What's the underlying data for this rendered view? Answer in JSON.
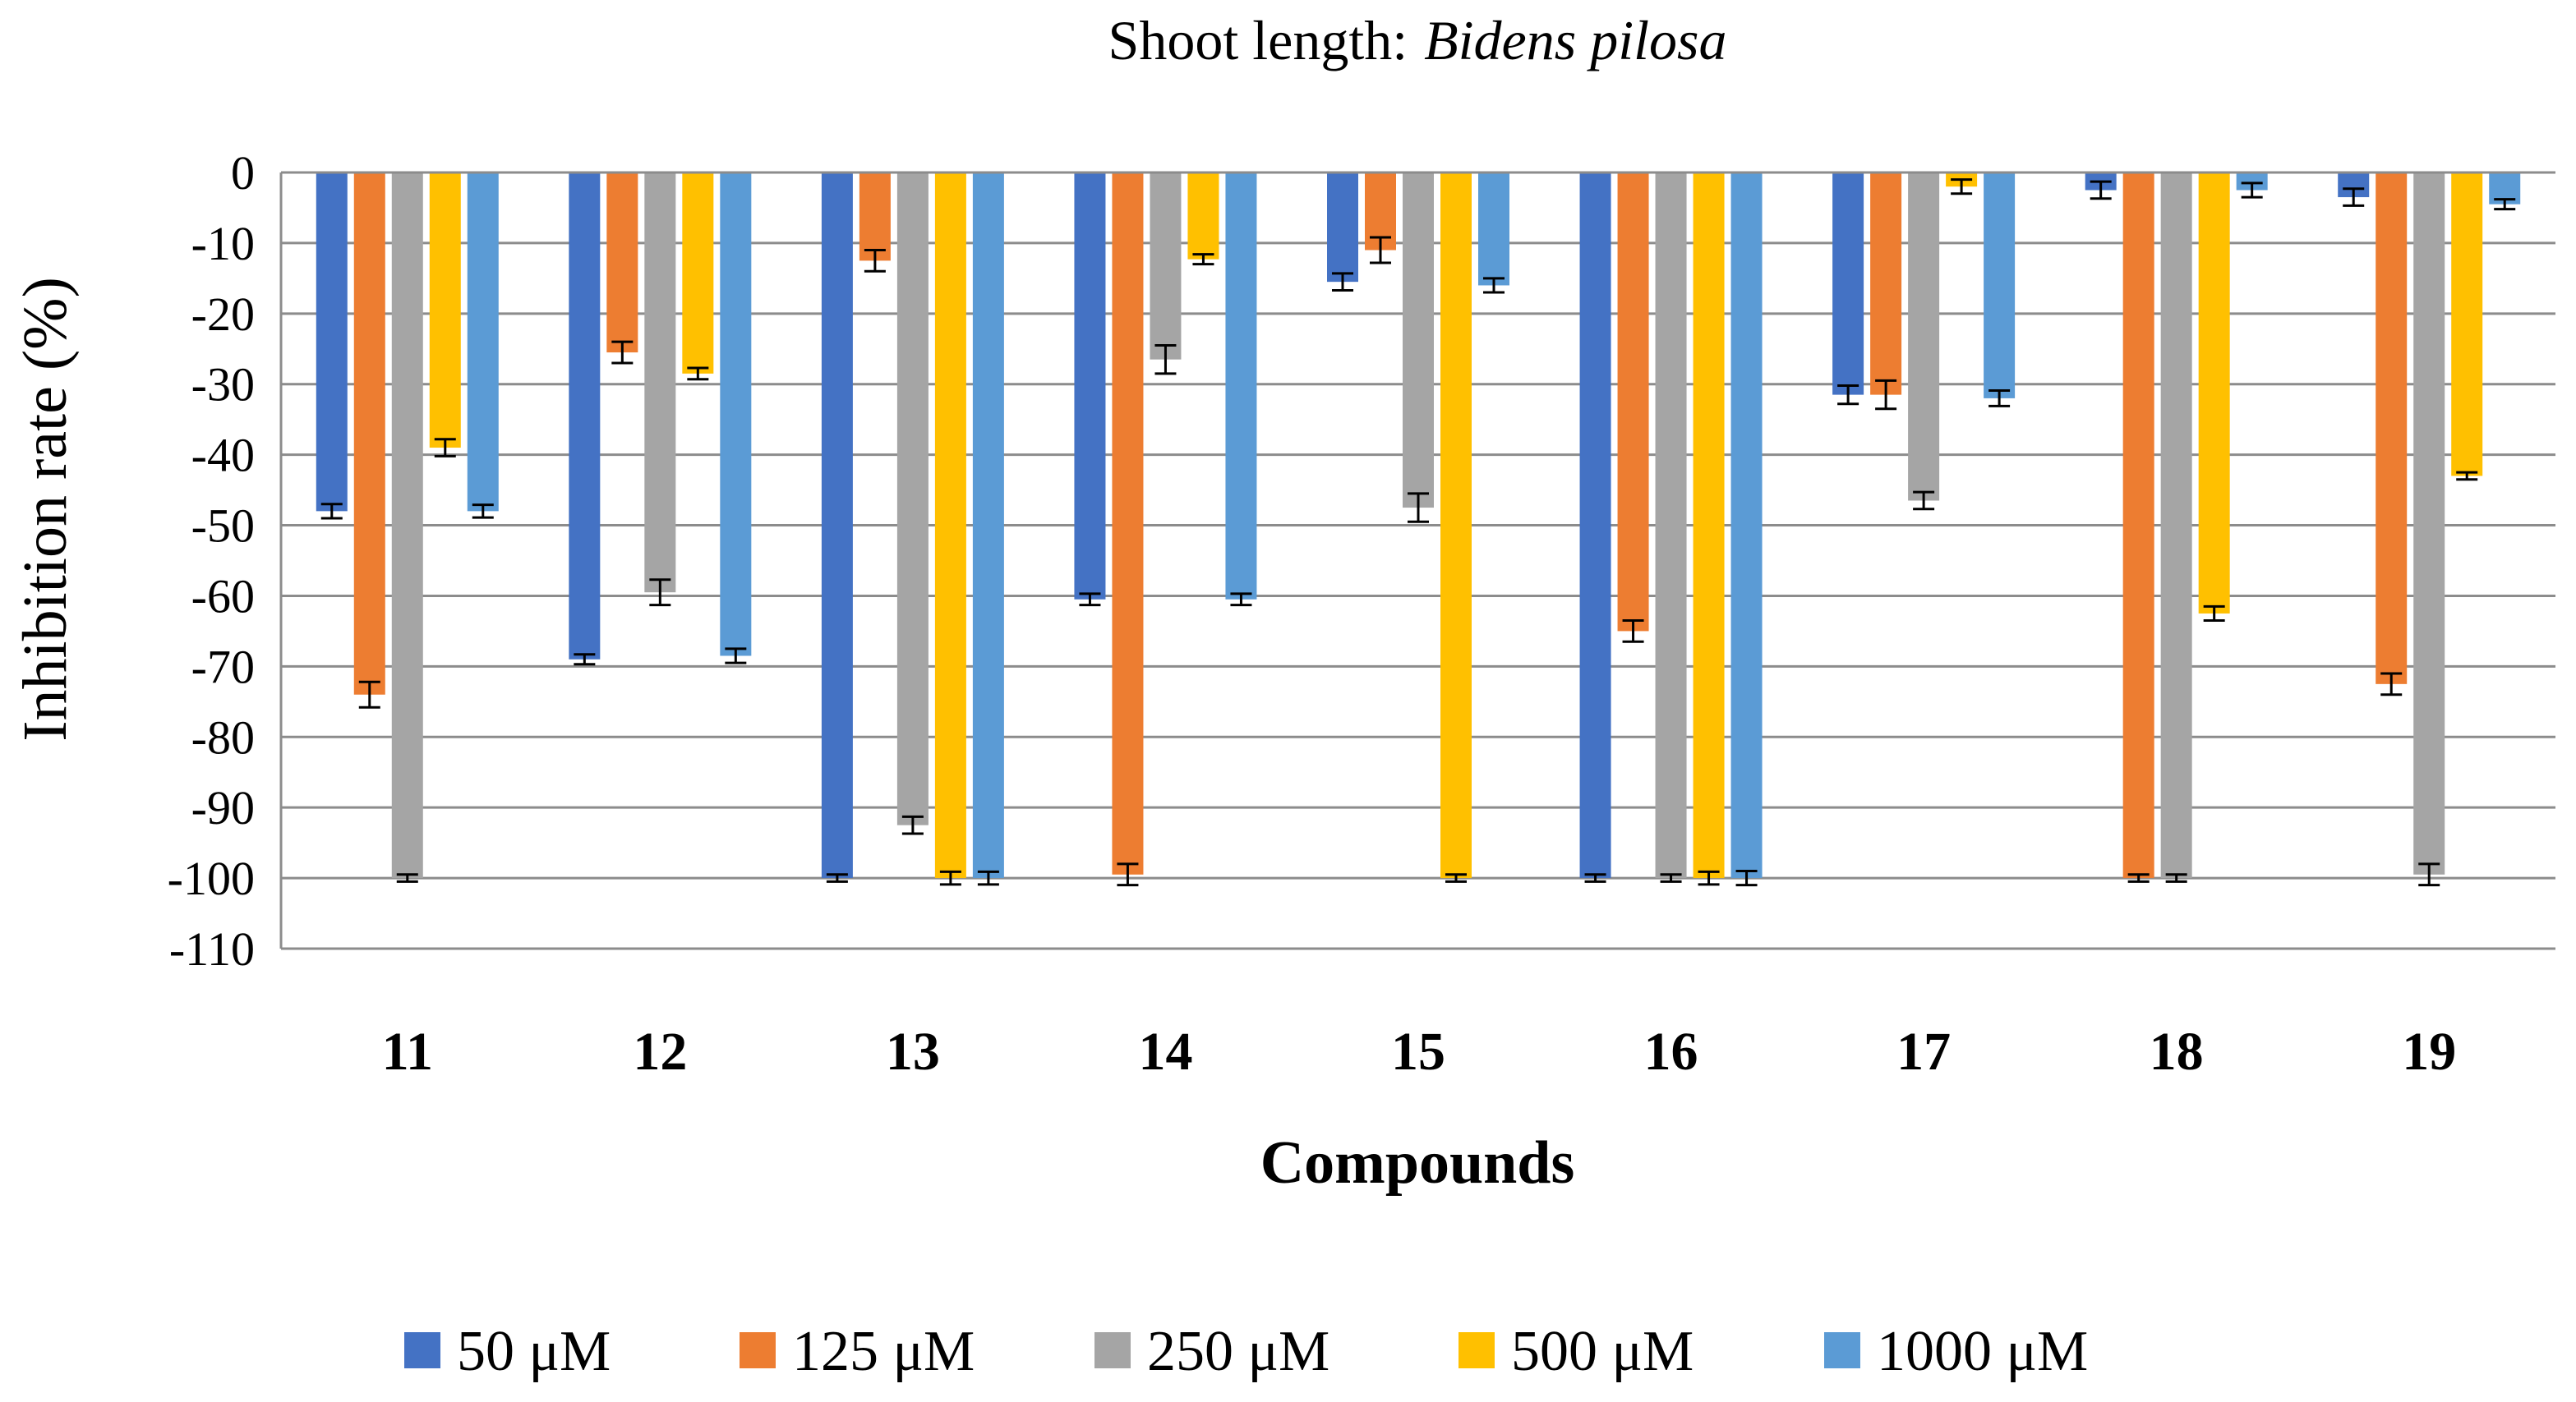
{
  "chart_data": {
    "type": "bar",
    "title": "Shoot length:",
    "title_species": "Bidens pilosa",
    "xlabel": "Compounds",
    "ylabel": "Inhibition rate (%)",
    "ylim": [
      -110,
      0
    ],
    "yticks": [
      0,
      -10,
      -20,
      -30,
      -40,
      -50,
      -60,
      -70,
      -80,
      -90,
      -100,
      -110
    ],
    "grid": true,
    "legend_position": "bottom",
    "categories": [
      "11",
      "12",
      "13",
      "14",
      "15",
      "16",
      "17",
      "18",
      "19"
    ],
    "series": [
      {
        "name": "50 μM",
        "color": "#4472C4",
        "values": [
          -48,
          -69,
          -100,
          -60.5,
          -15.5,
          -100,
          -31.5,
          -2.5,
          -3.5
        ],
        "errors": [
          1,
          0.7,
          0.5,
          0.8,
          1.2,
          0.5,
          1.3,
          1.2,
          1.2
        ]
      },
      {
        "name": "125 μM",
        "color": "#ED7D31",
        "values": [
          -74,
          -25.5,
          -12.5,
          -99.5,
          -11,
          -65,
          -31.5,
          -100,
          -72.5
        ],
        "errors": [
          1.8,
          1.5,
          1.5,
          1.5,
          1.8,
          1.5,
          2,
          0.5,
          1.5
        ]
      },
      {
        "name": "250 μM",
        "color": "#A5A5A5",
        "values": [
          -100,
          -59.5,
          -92.5,
          -26.5,
          -47.5,
          -100,
          -46.5,
          -100,
          -99.5
        ],
        "errors": [
          0.5,
          1.8,
          1.2,
          2,
          2,
          0.5,
          1.2,
          0.5,
          1.5
        ]
      },
      {
        "name": "500 μM",
        "color": "#FFC000",
        "values": [
          -39,
          -28.5,
          -100,
          -12.3,
          -100,
          -100,
          -2,
          -62.5,
          -43
        ],
        "errors": [
          1.2,
          0.8,
          0.9,
          0.7,
          0.5,
          0.9,
          1,
          1,
          0.5
        ]
      },
      {
        "name": "1000 μM",
        "color": "#5B9BD5",
        "values": [
          -48,
          -68.5,
          -100,
          -60.5,
          -16,
          -100,
          -32,
          -2.5,
          -4.5
        ],
        "errors": [
          0.9,
          1,
          0.9,
          0.8,
          1,
          1,
          1.1,
          1,
          0.7
        ]
      }
    ]
  }
}
